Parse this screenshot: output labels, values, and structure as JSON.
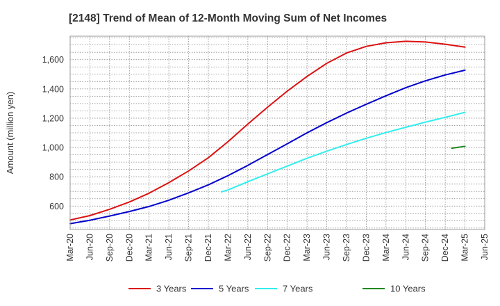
{
  "chart_data": {
    "type": "line",
    "title": "[2148]  Trend of Mean of 12-Month Moving Sum of Net Incomes",
    "xlabel": "",
    "ylabel": "Amount (million yen)",
    "ylim": [
      440,
      1760
    ],
    "yticks": [
      600,
      800,
      1000,
      1200,
      1400,
      1600
    ],
    "ytick_labels": [
      "600",
      "800",
      "1,000",
      "1,200",
      "1,400",
      "1,600"
    ],
    "xtick_labels": [
      "Mar-20",
      "Jun-20",
      "Sep-20",
      "Dec-20",
      "Mar-21",
      "Jun-21",
      "Sep-21",
      "Dec-21",
      "Mar-22",
      "Jun-22",
      "Sep-22",
      "Dec-22",
      "Mar-23",
      "Jun-23",
      "Sep-23",
      "Dec-23",
      "Mar-24",
      "Jun-24",
      "Sep-24",
      "Dec-24",
      "Mar-25",
      "Jun-25"
    ],
    "grid": true,
    "legend_position": "bottom",
    "series": [
      {
        "name": "3 Years",
        "color": "#dd1111",
        "points": [
          [
            "Mar-20",
            505
          ],
          [
            "Jun-20",
            535
          ],
          [
            "Sep-20",
            578
          ],
          [
            "Dec-20",
            628
          ],
          [
            "Mar-21",
            688
          ],
          [
            "Jun-21",
            760
          ],
          [
            "Sep-21",
            840
          ],
          [
            "Dec-21",
            930
          ],
          [
            "Mar-22",
            1040
          ],
          [
            "Jun-22",
            1160
          ],
          [
            "Sep-22",
            1275
          ],
          [
            "Dec-22",
            1385
          ],
          [
            "Mar-23",
            1485
          ],
          [
            "Jun-23",
            1575
          ],
          [
            "Sep-23",
            1645
          ],
          [
            "Dec-23",
            1690
          ],
          [
            "Mar-24",
            1715
          ],
          [
            "Jun-24",
            1725
          ],
          [
            "Sep-24",
            1720
          ],
          [
            "Dec-24",
            1705
          ],
          [
            "Mar-25",
            1685
          ]
        ]
      },
      {
        "name": "5 Years",
        "color": "#0000cc",
        "points": [
          [
            "Mar-20",
            480
          ],
          [
            "Jun-20",
            503
          ],
          [
            "Sep-20",
            532
          ],
          [
            "Dec-20",
            563
          ],
          [
            "Mar-21",
            597
          ],
          [
            "Jun-21",
            640
          ],
          [
            "Sep-21",
            690
          ],
          [
            "Dec-21",
            745
          ],
          [
            "Mar-22",
            808
          ],
          [
            "Jun-22",
            878
          ],
          [
            "Sep-22",
            952
          ],
          [
            "Dec-22",
            1025
          ],
          [
            "Mar-23",
            1100
          ],
          [
            "Jun-23",
            1170
          ],
          [
            "Sep-23",
            1235
          ],
          [
            "Dec-23",
            1295
          ],
          [
            "Mar-24",
            1353
          ],
          [
            "Jun-24",
            1408
          ],
          [
            "Sep-24",
            1455
          ],
          [
            "Dec-24",
            1495
          ],
          [
            "Mar-25",
            1528
          ]
        ]
      },
      {
        "name": "7 Years",
        "color": "#33eeee",
        "points": [
          [
            "Feb-22",
            697
          ],
          [
            "Mar-22",
            710
          ],
          [
            "Jun-22",
            766
          ],
          [
            "Sep-22",
            820
          ],
          [
            "Dec-22",
            873
          ],
          [
            "Mar-23",
            926
          ],
          [
            "Jun-23",
            975
          ],
          [
            "Sep-23",
            1020
          ],
          [
            "Dec-23",
            1063
          ],
          [
            "Mar-24",
            1102
          ],
          [
            "Jun-24",
            1138
          ],
          [
            "Sep-24",
            1173
          ],
          [
            "Dec-24",
            1206
          ],
          [
            "Mar-25",
            1240
          ]
        ]
      },
      {
        "name": "10 Years",
        "color": "#228822",
        "points": [
          [
            "Jan-25",
            995
          ],
          [
            "Mar-25",
            1008
          ]
        ]
      }
    ]
  }
}
